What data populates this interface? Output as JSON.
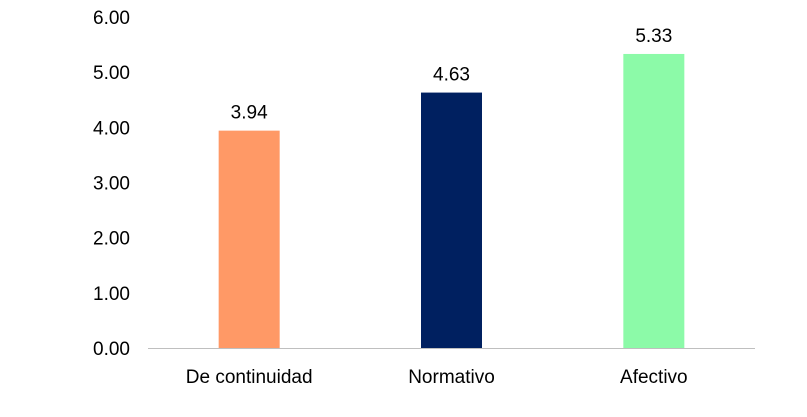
{
  "chart_data": {
    "type": "bar",
    "categories": [
      "De continuidad",
      "Normativo",
      "Afectivo"
    ],
    "values": [
      3.94,
      4.63,
      5.33
    ],
    "data_labels": [
      "3.94",
      "4.63",
      "5.33"
    ],
    "colors": [
      "#FF9966",
      "#002060",
      "#8CFAA8"
    ],
    "ylim": [
      0,
      6
    ],
    "yticks": [
      "0.00",
      "1.00",
      "2.00",
      "3.00",
      "4.00",
      "5.00",
      "6.00"
    ],
    "grid": false,
    "legend": "none"
  }
}
